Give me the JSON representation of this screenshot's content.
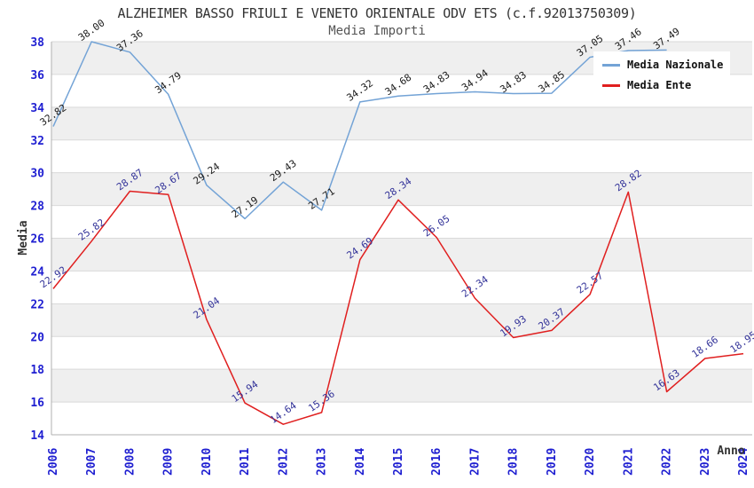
{
  "header": {
    "title": "ALZHEIMER BASSO FRIULI E VENETO ORIENTALE ODV ETS (c.f.92013750309)",
    "subtitle": "Media Importi"
  },
  "legend": {
    "items": [
      {
        "label": "Media Nazionale",
        "color": "#73a3d6"
      },
      {
        "label": "Media Ente",
        "color": "#e01f1f"
      }
    ]
  },
  "chart_data": {
    "type": "line",
    "title": "ALZHEIMER BASSO FRIULI E VENETO ORIENTALE ODV ETS (c.f.92013750309)",
    "subtitle": "Media Importi",
    "xlabel": "Anno",
    "ylabel": "Media",
    "x": [
      2006,
      2007,
      2008,
      2009,
      2010,
      2011,
      2012,
      2013,
      2014,
      2015,
      2016,
      2017,
      2018,
      2019,
      2020,
      2021,
      2022,
      2023,
      2024
    ],
    "series": [
      {
        "name": "Media Nazionale",
        "color": "#73a3d6",
        "label_color": "#1a1a1a",
        "values": [
          32.82,
          38.0,
          37.36,
          34.79,
          29.24,
          27.19,
          29.43,
          27.71,
          34.32,
          34.68,
          34.83,
          34.94,
          34.83,
          34.85,
          37.05,
          37.46,
          37.49,
          null,
          null
        ]
      },
      {
        "name": "Media Ente",
        "color": "#e01f1f",
        "label_color": "#333399",
        "values": [
          22.92,
          25.82,
          28.87,
          28.67,
          21.04,
          15.94,
          14.64,
          15.36,
          24.69,
          28.34,
          26.05,
          22.34,
          19.93,
          20.37,
          22.57,
          28.82,
          16.63,
          18.66,
          18.95
        ]
      }
    ],
    "ylim": [
      14,
      38
    ],
    "yticks": [
      38,
      36,
      34,
      32,
      30,
      28,
      26,
      24,
      22,
      20,
      18,
      16,
      14
    ],
    "grid": true,
    "band_color": "#efefef",
    "grid_color": "#d9d9d9",
    "axis_color": "#b0b0b0",
    "tick_label_color": "#1f1fd1",
    "axis_title_color": "#333333",
    "legend_position": "top-right"
  }
}
